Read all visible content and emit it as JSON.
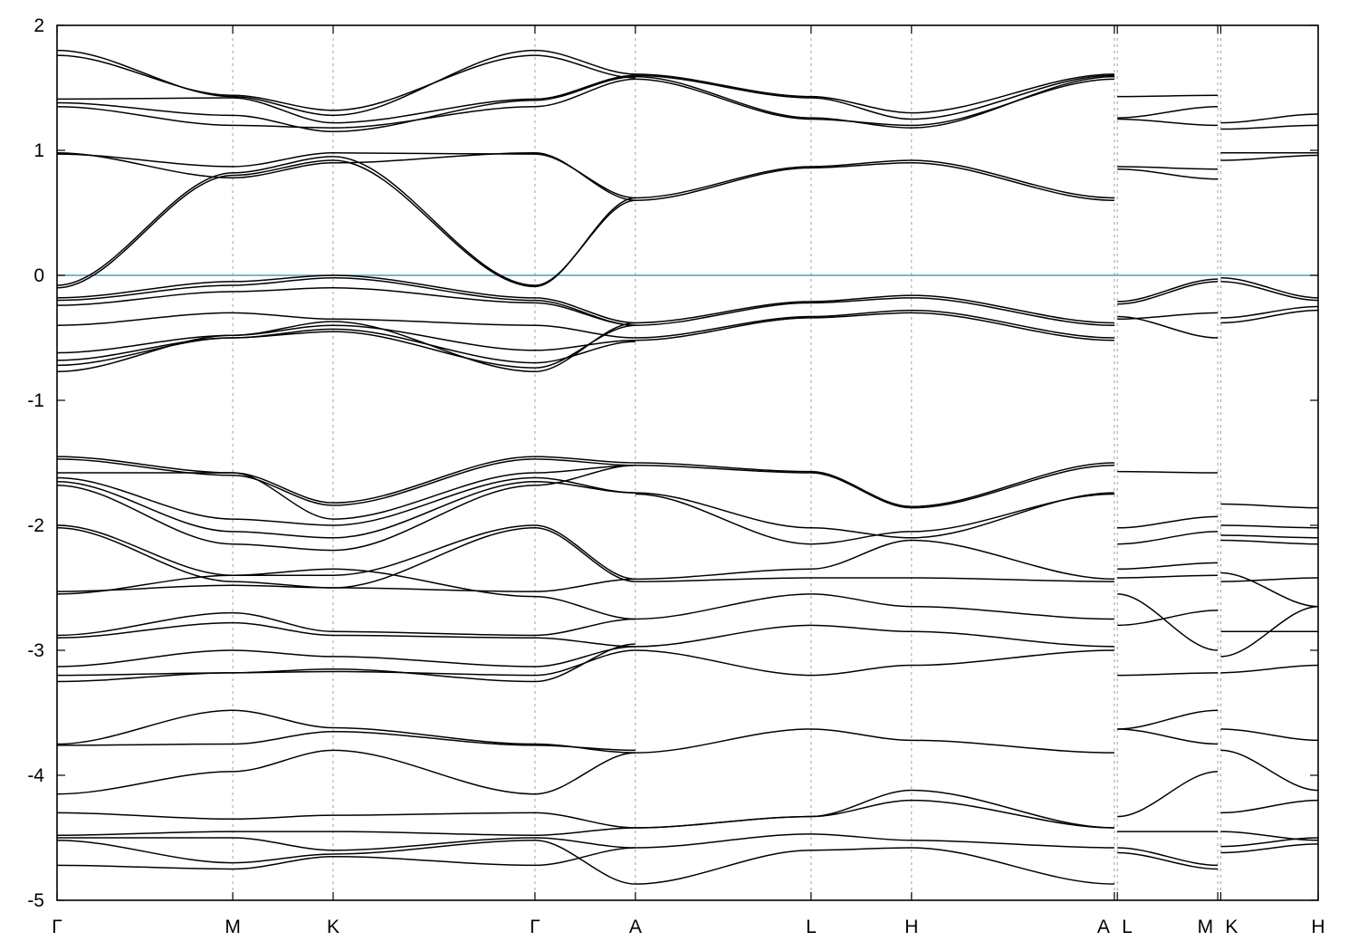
{
  "chart_data": {
    "type": "line",
    "title": "",
    "xlabel": "",
    "ylabel": "",
    "ylim": [
      -5,
      2
    ],
    "yticks": [
      2,
      1,
      0,
      -1,
      -2,
      -3,
      -4,
      -5
    ],
    "ytick_labels": [
      "2",
      "1",
      "0",
      "-1",
      "-2",
      "-3",
      "-4",
      "-5"
    ],
    "xlim": [
      0,
      12.56
    ],
    "kpath": [
      {
        "label": "Γ",
        "x": 0.0
      },
      {
        "label": "M",
        "x": 1.75
      },
      {
        "label": "K",
        "x": 2.75
      },
      {
        "label": "Γ",
        "x": 4.76
      },
      {
        "label": "A",
        "x": 5.76
      },
      {
        "label": "L",
        "x": 7.51
      },
      {
        "label": "H",
        "x": 8.51
      },
      {
        "label": "A",
        "x": 10.53
      },
      {
        "label": "L",
        "x": 10.56
      },
      {
        "label": "M",
        "x": 11.56
      },
      {
        "label": "K",
        "x": 11.59
      },
      {
        "label": "H",
        "x": 12.56
      }
    ],
    "fermi_level": {
      "y": 0,
      "color": "#4aa3b5"
    },
    "band_color": "#000000",
    "grid": "vertical-dashed-at-kpoints",
    "segments": [
      {
        "x": [
          0.0,
          1.75,
          2.75,
          4.76,
          5.76
        ],
        "series": [
          {
            "values": [
              -0.08,
              0.82,
              0.95,
              -0.08,
              0.6
            ]
          },
          {
            "values": [
              -0.1,
              0.8,
              0.92,
              -0.09,
              0.62
            ]
          },
          {
            "values": [
              0.97,
              0.87,
              0.98,
              0.97,
              0.62
            ]
          },
          {
            "values": [
              0.98,
              0.78,
              0.9,
              0.98,
              0.6
            ]
          },
          {
            "values": [
              1.35,
              1.2,
              1.18,
              1.35,
              1.57
            ]
          },
          {
            "values": [
              1.38,
              1.28,
              1.15,
              1.4,
              1.59
            ]
          },
          {
            "values": [
              1.41,
              1.42,
              1.22,
              1.41,
              1.6
            ]
          },
          {
            "values": [
              1.76,
              1.44,
              1.32,
              1.76,
              1.58
            ]
          },
          {
            "values": [
              1.8,
              1.43,
              1.28,
              1.8,
              1.61
            ]
          },
          {
            "values": [
              -0.18,
              -0.05,
              0.0,
              -0.18,
              -0.38
            ]
          },
          {
            "values": [
              -0.2,
              -0.08,
              -0.02,
              -0.2,
              -0.4
            ]
          },
          {
            "values": [
              -0.24,
              -0.13,
              -0.1,
              -0.22,
              -0.4
            ]
          },
          {
            "values": [
              -0.4,
              -0.3,
              -0.35,
              -0.4,
              -0.5
            ]
          },
          {
            "values": [
              -0.62,
              -0.48,
              -0.4,
              -0.6,
              -0.52
            ]
          },
          {
            "values": [
              -0.68,
              -0.5,
              -0.43,
              -0.7,
              -0.53
            ]
          },
          {
            "values": [
              -0.72,
              -0.5,
              -0.45,
              -0.74,
              -0.4
            ]
          },
          {
            "values": [
              -0.77,
              -0.48,
              -0.37,
              -0.77,
              -0.38
            ]
          },
          {
            "values": [
              -1.45,
              -1.58,
              -1.82,
              -1.45,
              -1.5
            ]
          },
          {
            "values": [
              -1.47,
              -1.6,
              -1.84,
              -1.47,
              -1.52
            ]
          },
          {
            "values": [
              -1.58,
              -1.58,
              -1.95,
              -1.58,
              -1.52
            ]
          },
          {
            "values": [
              -1.62,
              -1.95,
              -2.0,
              -1.62,
              -1.74
            ]
          },
          {
            "values": [
              -1.65,
              -2.05,
              -2.1,
              -1.65,
              -1.74
            ]
          },
          {
            "values": [
              -1.68,
              -2.15,
              -2.2,
              -1.68,
              -1.52
            ]
          },
          {
            "values": [
              -2.0,
              -2.4,
              -2.4,
              -2.0,
              -2.43
            ]
          },
          {
            "values": [
              -2.02,
              -2.45,
              -2.5,
              -2.02,
              -2.45
            ]
          },
          {
            "values": [
              -2.53,
              -2.48,
              -2.5,
              -2.53,
              -2.43
            ]
          },
          {
            "values": [
              -2.55,
              -2.4,
              -2.35,
              -2.57,
              -2.75
            ]
          },
          {
            "values": [
              -2.88,
              -2.7,
              -2.85,
              -2.88,
              -2.75
            ]
          },
          {
            "values": [
              -2.9,
              -2.78,
              -2.88,
              -2.9,
              -2.97
            ]
          },
          {
            "values": [
              -3.13,
              -3.0,
              -3.05,
              -3.13,
              -2.97
            ]
          },
          {
            "values": [
              -3.2,
              -3.18,
              -3.17,
              -3.2,
              -3.0
            ]
          },
          {
            "values": [
              -3.25,
              -3.18,
              -3.15,
              -3.25,
              -2.95
            ]
          },
          {
            "values": [
              -3.75,
              -3.48,
              -3.62,
              -3.75,
              -3.82
            ]
          },
          {
            "values": [
              -3.76,
              -3.75,
              -3.65,
              -3.76,
              -3.8
            ]
          },
          {
            "values": [
              -4.15,
              -3.97,
              -3.8,
              -4.15,
              -3.82
            ]
          },
          {
            "values": [
              -4.3,
              -4.35,
              -4.32,
              -4.3,
              -4.42
            ]
          },
          {
            "values": [
              -4.48,
              -4.45,
              -4.45,
              -4.48,
              -4.42
            ]
          },
          {
            "values": [
              -4.5,
              -4.5,
              -4.6,
              -4.5,
              -4.58
            ]
          },
          {
            "values": [
              -4.52,
              -4.7,
              -4.63,
              -4.52,
              -4.87
            ]
          },
          {
            "values": [
              -4.72,
              -4.75,
              -4.65,
              -4.72,
              -4.58
            ]
          }
        ]
      },
      {
        "x": [
          5.76,
          7.51,
          8.51,
          10.53
        ],
        "series": [
          {
            "values": [
              0.62,
              0.87,
              0.92,
              0.62
            ]
          },
          {
            "values": [
              0.6,
              0.86,
              0.9,
              0.6
            ]
          },
          {
            "values": [
              1.57,
              1.25,
              1.2,
              1.57
            ]
          },
          {
            "values": [
              1.59,
              1.26,
              1.18,
              1.59
            ]
          },
          {
            "values": [
              1.61,
              1.43,
              1.3,
              1.61
            ]
          },
          {
            "values": [
              1.6,
              1.42,
              1.25,
              1.6
            ]
          },
          {
            "values": [
              -0.38,
              -0.21,
              -0.16,
              -0.38
            ]
          },
          {
            "values": [
              -0.4,
              -0.22,
              -0.18,
              -0.4
            ]
          },
          {
            "values": [
              -0.5,
              -0.33,
              -0.28,
              -0.5
            ]
          },
          {
            "values": [
              -0.52,
              -0.34,
              -0.3,
              -0.52
            ]
          },
          {
            "values": [
              -1.5,
              -1.57,
              -1.85,
              -1.5
            ]
          },
          {
            "values": [
              -1.52,
              -1.58,
              -1.86,
              -1.52
            ]
          },
          {
            "values": [
              -1.74,
              -2.02,
              -2.1,
              -1.74
            ]
          },
          {
            "values": [
              -1.75,
              -2.15,
              -2.05,
              -1.75
            ]
          },
          {
            "values": [
              -2.43,
              -2.35,
              -2.12,
              -2.43
            ]
          },
          {
            "values": [
              -2.45,
              -2.42,
              -2.42,
              -2.45
            ]
          },
          {
            "values": [
              -2.75,
              -2.55,
              -2.65,
              -2.75
            ]
          },
          {
            "values": [
              -2.97,
              -2.8,
              -2.85,
              -2.97
            ]
          },
          {
            "values": [
              -3.0,
              -3.2,
              -3.12,
              -3.0
            ]
          },
          {
            "values": [
              -3.82,
              -3.63,
              -3.72,
              -3.82
            ]
          },
          {
            "values": [
              -4.42,
              -4.33,
              -4.12,
              -4.42
            ]
          },
          {
            "values": [
              -4.42,
              -4.33,
              -4.2,
              -4.42
            ]
          },
          {
            "values": [
              -4.58,
              -4.47,
              -4.52,
              -4.58
            ]
          },
          {
            "values": [
              -4.87,
              -4.6,
              -4.58,
              -4.87
            ]
          }
        ]
      },
      {
        "x": [
          10.56,
          11.56
        ],
        "series": [
          {
            "values": [
              0.87,
              0.85
            ]
          },
          {
            "values": [
              0.85,
              0.77
            ]
          },
          {
            "values": [
              1.26,
              1.35
            ]
          },
          {
            "values": [
              1.25,
              1.2
            ]
          },
          {
            "values": [
              1.43,
              1.44
            ]
          },
          {
            "values": [
              -0.21,
              -0.03
            ]
          },
          {
            "values": [
              -0.23,
              -0.05
            ]
          },
          {
            "values": [
              -0.33,
              -0.5
            ]
          },
          {
            "values": [
              -0.35,
              -0.3
            ]
          },
          {
            "values": [
              -1.57,
              -1.58
            ]
          },
          {
            "values": [
              -2.02,
              -1.93
            ]
          },
          {
            "values": [
              -2.15,
              -2.05
            ]
          },
          {
            "values": [
              -2.35,
              -2.3
            ]
          },
          {
            "values": [
              -2.42,
              -2.4
            ]
          },
          {
            "values": [
              -2.55,
              -3.0
            ]
          },
          {
            "values": [
              -2.8,
              -2.68
            ]
          },
          {
            "values": [
              -3.2,
              -3.18
            ]
          },
          {
            "values": [
              -3.63,
              -3.48
            ]
          },
          {
            "values": [
              -3.63,
              -3.75
            ]
          },
          {
            "values": [
              -4.33,
              -3.97
            ]
          },
          {
            "values": [
              -4.45,
              -4.45
            ]
          },
          {
            "values": [
              -4.58,
              -4.72
            ]
          },
          {
            "values": [
              -4.62,
              -4.75
            ]
          }
        ]
      },
      {
        "x": [
          11.59,
          12.56
        ],
        "series": [
          {
            "values": [
              0.98,
              0.98
            ]
          },
          {
            "values": [
              0.92,
              0.96
            ]
          },
          {
            "values": [
              1.17,
              1.2
            ]
          },
          {
            "values": [
              1.22,
              1.29
            ]
          },
          {
            "values": [
              -0.02,
              -0.18
            ]
          },
          {
            "values": [
              -0.05,
              -0.2
            ]
          },
          {
            "values": [
              -0.34,
              -0.25
            ]
          },
          {
            "values": [
              -0.38,
              -0.28
            ]
          },
          {
            "values": [
              -1.83,
              -1.86
            ]
          },
          {
            "values": [
              -2.0,
              -2.02
            ]
          },
          {
            "values": [
              -2.08,
              -2.1
            ]
          },
          {
            "values": [
              -2.12,
              -2.15
            ]
          },
          {
            "values": [
              -2.38,
              -2.65
            ]
          },
          {
            "values": [
              -2.45,
              -2.42
            ]
          },
          {
            "values": [
              -2.85,
              -2.85
            ]
          },
          {
            "values": [
              -3.05,
              -2.65
            ]
          },
          {
            "values": [
              -3.18,
              -3.12
            ]
          },
          {
            "values": [
              -3.63,
              -3.72
            ]
          },
          {
            "values": [
              -3.8,
              -4.12
            ]
          },
          {
            "values": [
              -4.3,
              -4.2
            ]
          },
          {
            "values": [
              -4.45,
              -4.52
            ]
          },
          {
            "values": [
              -4.57,
              -4.5
            ]
          },
          {
            "values": [
              -4.62,
              -4.55
            ]
          }
        ]
      }
    ]
  }
}
